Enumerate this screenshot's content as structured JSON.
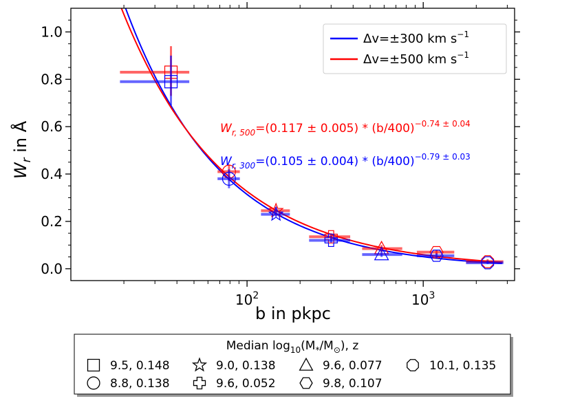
{
  "chart_data": {
    "type": "scatter",
    "xscale": "log",
    "xlim": [
      10,
      3300
    ],
    "ylim": [
      -0.05,
      1.1
    ],
    "xlabel": "b in pkpc",
    "ylabel_main": "W",
    "ylabel_sub": "r",
    "ylabel_rest": " in Å",
    "y_ticks": [
      "0.0",
      "0.2",
      "0.4",
      "0.6",
      "0.8",
      "1.0"
    ],
    "y_tick_values": [
      0.0,
      0.2,
      0.4,
      0.6,
      0.8,
      1.0
    ],
    "x_ticks": [
      {
        "base": "10",
        "exp": "2",
        "value": 100
      },
      {
        "base": "10",
        "exp": "3",
        "value": 1000
      }
    ],
    "series": [
      {
        "name": "Δv=±300 km s⁻¹",
        "legend_main": "Δv=±300 km s",
        "legend_exp": "−1",
        "color": "#0000ff",
        "fit": {
          "A": 0.105,
          "alpha": -0.79,
          "b0": 400
        },
        "points": [
          {
            "x": 37,
            "y": 0.79,
            "xerr": [
              19,
              47
            ],
            "yerr": [
              0.69,
              0.9
            ],
            "marker": "square"
          },
          {
            "x": 79,
            "y": 0.38,
            "xerr": [
              68,
              91
            ],
            "yerr": [
              0.34,
              0.42
            ],
            "marker": "circle"
          },
          {
            "x": 146,
            "y": 0.23,
            "xerr": [
              120,
              175
            ],
            "yerr": [
              0.22,
              0.25
            ],
            "marker": "star"
          },
          {
            "x": 300,
            "y": 0.12,
            "xerr": [
              225,
              385
            ],
            "yerr": [
              0.11,
              0.14
            ],
            "marker": "cross"
          },
          {
            "x": 580,
            "y": 0.06,
            "xerr": [
              450,
              760
            ],
            "yerr": [
              0.05,
              0.08
            ],
            "marker": "triangle"
          },
          {
            "x": 1190,
            "y": 0.055,
            "xerr": [
              920,
              1500
            ],
            "yerr": [
              0.045,
              0.065
            ],
            "marker": "hexagon"
          },
          {
            "x": 2320,
            "y": 0.025,
            "xerr": [
              1750,
              2850
            ],
            "yerr": [
              0.02,
              0.035
            ],
            "marker": "octagon"
          }
        ]
      },
      {
        "name": "Δv=±500 km s⁻¹",
        "legend_main": "Δv=±500 km s",
        "legend_exp": "−1",
        "color": "#ff0000",
        "fit": {
          "A": 0.117,
          "alpha": -0.74,
          "b0": 400
        },
        "points": [
          {
            "x": 37,
            "y": 0.83,
            "xerr": [
              19,
              47
            ],
            "yerr": [
              0.73,
              0.94
            ],
            "marker": "square"
          },
          {
            "x": 79,
            "y": 0.41,
            "xerr": [
              68,
              91
            ],
            "yerr": [
              0.37,
              0.44
            ],
            "marker": "circle"
          },
          {
            "x": 146,
            "y": 0.245,
            "xerr": [
              120,
              175
            ],
            "yerr": [
              0.23,
              0.26
            ],
            "marker": "star"
          },
          {
            "x": 300,
            "y": 0.135,
            "xerr": [
              225,
              385
            ],
            "yerr": [
              0.12,
              0.15
            ],
            "marker": "cross"
          },
          {
            "x": 580,
            "y": 0.085,
            "xerr": [
              450,
              760
            ],
            "yerr": [
              0.07,
              0.1
            ],
            "marker": "triangle"
          },
          {
            "x": 1190,
            "y": 0.07,
            "xerr": [
              920,
              1500
            ],
            "yerr": [
              0.06,
              0.08
            ],
            "marker": "hexagon"
          },
          {
            "x": 2320,
            "y": 0.03,
            "xerr": [
              1750,
              2850
            ],
            "yerr": [
              0.025,
              0.04
            ],
            "marker": "octagon"
          }
        ]
      }
    ],
    "annotations": {
      "red": {
        "w": "W",
        "sub": "r, 500",
        "text": "=(0.117 ± 0.005) * (b/400)",
        "exp": "−0.74 ± 0.04"
      },
      "blue": {
        "w": "W",
        "sub": "r, 300",
        "text": "=(0.105 ± 0.004) * (b/400)",
        "exp": "−0.79 ± 0.03"
      }
    }
  },
  "marker_legend": {
    "title_pre": "Median log",
    "title_sub": "10",
    "title_mid": "(M",
    "title_sub2": "*",
    "title_mid2": "/M",
    "title_sub3": "⊙",
    "title_post": "),  z",
    "items": [
      {
        "marker": "square",
        "label": "9.5, 0.148"
      },
      {
        "marker": "circle",
        "label": "8.8, 0.138"
      },
      {
        "marker": "star",
        "label": "9.0, 0.138"
      },
      {
        "marker": "cross",
        "label": "9.6, 0.052"
      },
      {
        "marker": "triangle",
        "label": "9.6, 0.077"
      },
      {
        "marker": "hexagon",
        "label": "9.8, 0.107"
      },
      {
        "marker": "octagon",
        "label": "10.1, 0.135"
      }
    ]
  }
}
